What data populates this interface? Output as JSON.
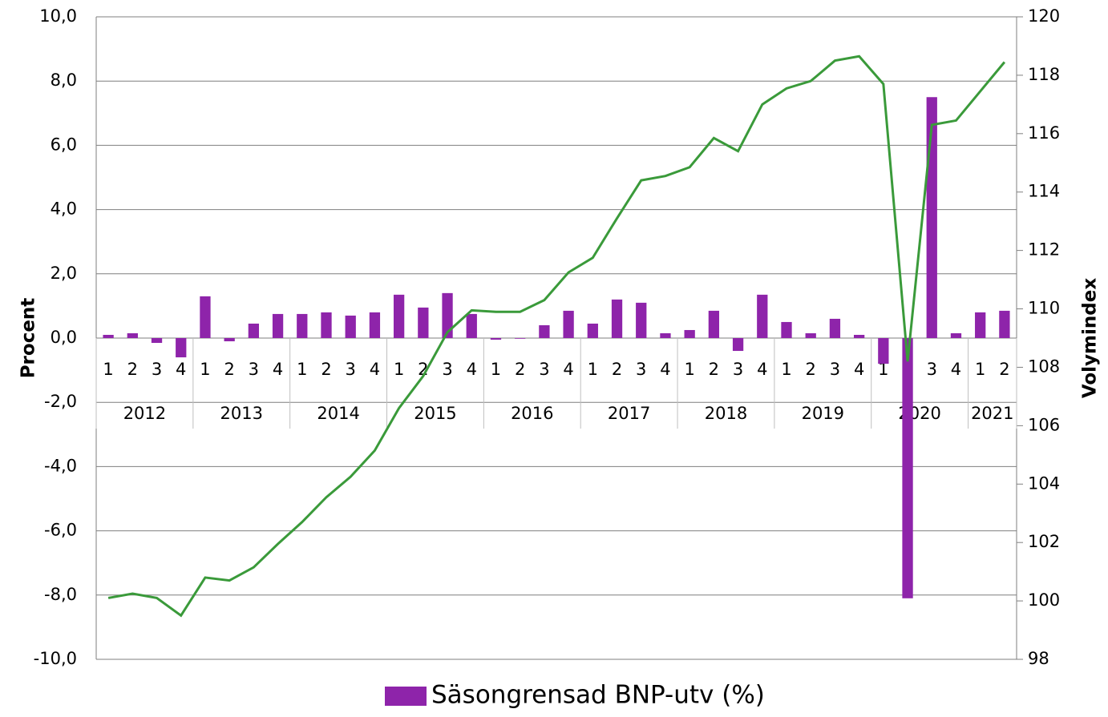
{
  "chart_data": {
    "type": "bar_line",
    "y_label": "Procent",
    "y2_label": "Volymindex",
    "categories": [
      "1",
      "2",
      "3",
      "4",
      "1",
      "2",
      "3",
      "4",
      "1",
      "2",
      "3",
      "4",
      "1",
      "2",
      "3",
      "4",
      "1",
      "2",
      "3",
      "4",
      "1",
      "2",
      "3",
      "4",
      "1",
      "2",
      "3",
      "4",
      "1",
      "2",
      "3",
      "4",
      "1",
      "2",
      "3",
      "4",
      "1",
      "2"
    ],
    "groups": [
      {
        "label": "2012",
        "count": 4
      },
      {
        "label": "2013",
        "count": 4
      },
      {
        "label": "2014",
        "count": 4
      },
      {
        "label": "2015",
        "count": 4
      },
      {
        "label": "2016",
        "count": 4
      },
      {
        "label": "2017",
        "count": 4
      },
      {
        "label": "2018",
        "count": 4
      },
      {
        "label": "2019",
        "count": 4
      },
      {
        "label": "2020",
        "count": 4
      },
      {
        "label": "2021",
        "count": 2
      }
    ],
    "series": [
      {
        "name": "Säsongrensad BNP-utv (%)",
        "type": "bar",
        "color": "#8e24aa",
        "values": [
          0.1,
          0.15,
          -0.15,
          -0.6,
          1.3,
          -0.1,
          0.45,
          0.75,
          0.75,
          0.8,
          0.7,
          0.8,
          1.35,
          0.95,
          1.4,
          0.75,
          -0.05,
          -0.02,
          0.4,
          0.85,
          0.45,
          1.2,
          1.1,
          0.15,
          0.25,
          0.85,
          -0.4,
          1.35,
          0.5,
          0.15,
          0.6,
          0.1,
          -0.8,
          -8.1,
          7.5,
          0.15,
          0.8,
          0.85
        ]
      },
      {
        "type": "line",
        "axis": "y2",
        "color": "#3a9a3a",
        "values": [
          100.1,
          100.25,
          100.1,
          99.5,
          100.8,
          100.7,
          101.15,
          101.95,
          102.7,
          103.55,
          104.25,
          105.15,
          106.6,
          107.7,
          109.2,
          109.95,
          109.9,
          109.9,
          110.3,
          111.25,
          111.75,
          113.1,
          114.4,
          114.55,
          114.85,
          115.85,
          115.4,
          117.0,
          117.55,
          117.8,
          118.5,
          118.65,
          117.7,
          108.2,
          116.3,
          116.45,
          117.45,
          118.45
        ]
      }
    ],
    "ylim": [
      -10,
      10
    ],
    "yticks": [
      {
        "value": -10,
        "label": "-10,0"
      },
      {
        "value": -8,
        "label": "-8,0"
      },
      {
        "value": -6,
        "label": "-6,0"
      },
      {
        "value": -4,
        "label": "-4,0"
      },
      {
        "value": -2,
        "label": "-2,0"
      },
      {
        "value": 0,
        "label": "0,0"
      },
      {
        "value": 2,
        "label": "2,0"
      },
      {
        "value": 4,
        "label": "4,0"
      },
      {
        "value": 6,
        "label": "6,0"
      },
      {
        "value": 8,
        "label": "8,0"
      },
      {
        "value": 10,
        "label": "10,0"
      }
    ],
    "y2lim": [
      98,
      120
    ],
    "y2ticks": [
      98,
      100,
      102,
      104,
      106,
      108,
      110,
      112,
      114,
      116,
      118,
      120
    ],
    "grid": true,
    "legend": "bottom"
  }
}
